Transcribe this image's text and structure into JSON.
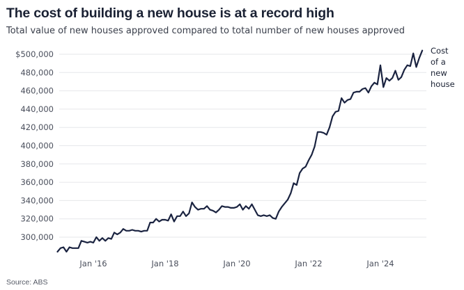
{
  "title": "The cost of building a new house is at a record high",
  "subtitle": "Total value of new houses approved compared to total number of new houses approved",
  "source": "Source: ABS",
  "colors": {
    "line": "#1a2340",
    "grid": "#e6e7ea",
    "text": "#4a4f5c"
  },
  "chart_data": {
    "type": "line",
    "title": "The cost of building a new house is at a record high",
    "subtitle": "Total value of new houses approved compared to total number of new houses approved",
    "xlabel": "",
    "ylabel": "",
    "ylim": [
      280000,
      510000
    ],
    "yticks": [
      300000,
      320000,
      340000,
      360000,
      380000,
      400000,
      420000,
      440000,
      460000,
      480000,
      500000
    ],
    "ytick_labels": [
      "300,000",
      "320,000",
      "340,000",
      "360,000",
      "380,000",
      "400,000",
      "420,000",
      "440,000",
      "460,000",
      "480,000",
      "$500,000"
    ],
    "xlim": [
      "2015-01",
      "2025-04"
    ],
    "xticks": [
      "2016-01",
      "2018-01",
      "2020-01",
      "2022-01",
      "2024-01"
    ],
    "xtick_labels": [
      "Jan '16",
      "Jan '18",
      "Jan '20",
      "Jan '22",
      "Jan '24"
    ],
    "grid": true,
    "annotation": [
      "Cost",
      "of a",
      "new",
      "house"
    ],
    "series": [
      {
        "name": "Cost of a new house",
        "x": [
          "2015-01",
          "2015-02",
          "2015-03",
          "2015-04",
          "2015-05",
          "2015-06",
          "2015-07",
          "2015-08",
          "2015-09",
          "2015-10",
          "2015-11",
          "2015-12",
          "2016-01",
          "2016-02",
          "2016-03",
          "2016-04",
          "2016-05",
          "2016-06",
          "2016-07",
          "2016-08",
          "2016-09",
          "2016-10",
          "2016-11",
          "2016-12",
          "2017-01",
          "2017-02",
          "2017-03",
          "2017-04",
          "2017-05",
          "2017-06",
          "2017-07",
          "2017-08",
          "2017-09",
          "2017-10",
          "2017-11",
          "2017-12",
          "2018-01",
          "2018-02",
          "2018-03",
          "2018-04",
          "2018-05",
          "2018-06",
          "2018-07",
          "2018-08",
          "2018-09",
          "2018-10",
          "2018-11",
          "2018-12",
          "2019-01",
          "2019-02",
          "2019-03",
          "2019-04",
          "2019-05",
          "2019-06",
          "2019-07",
          "2019-08",
          "2019-09",
          "2019-10",
          "2019-11",
          "2019-12",
          "2020-01",
          "2020-02",
          "2020-03",
          "2020-04",
          "2020-05",
          "2020-06",
          "2020-07",
          "2020-08",
          "2020-09",
          "2020-10",
          "2020-11",
          "2020-12",
          "2021-01",
          "2021-02",
          "2021-03",
          "2021-04",
          "2021-05",
          "2021-06",
          "2021-07",
          "2021-08",
          "2021-09",
          "2021-10",
          "2021-11",
          "2021-12",
          "2022-01",
          "2022-02",
          "2022-03",
          "2022-04",
          "2022-05",
          "2022-06",
          "2022-07",
          "2022-08",
          "2022-09",
          "2022-10",
          "2022-11",
          "2022-12",
          "2023-01",
          "2023-02",
          "2023-03",
          "2023-04",
          "2023-05",
          "2023-06",
          "2023-07",
          "2023-08",
          "2023-09",
          "2023-10",
          "2023-11",
          "2023-12",
          "2024-01",
          "2024-02",
          "2024-03",
          "2024-04",
          "2024-05",
          "2024-06",
          "2024-07",
          "2024-08",
          "2024-09",
          "2024-10",
          "2024-11",
          "2024-12",
          "2025-01",
          "2025-02",
          "2025-03"
        ],
        "values": [
          284000,
          288000,
          289000,
          284000,
          289000,
          288000,
          288000,
          288000,
          296000,
          295000,
          294000,
          295000,
          294000,
          300000,
          296000,
          299000,
          296000,
          299000,
          298000,
          305000,
          303000,
          305000,
          309000,
          307000,
          307000,
          308000,
          307000,
          307000,
          306000,
          307000,
          307000,
          316000,
          316000,
          320000,
          317000,
          319000,
          319000,
          318000,
          325000,
          317000,
          323000,
          323000,
          328000,
          323000,
          326000,
          338000,
          333000,
          330000,
          331000,
          331000,
          334000,
          330000,
          329000,
          327000,
          330000,
          334000,
          333000,
          333000,
          332000,
          332000,
          333000,
          336000,
          330000,
          334000,
          331000,
          336000,
          330000,
          324000,
          323000,
          324000,
          323000,
          324000,
          321000,
          320000,
          328000,
          333000,
          337000,
          341000,
          348000,
          359000,
          357000,
          370000,
          375000,
          377000,
          384000,
          390000,
          399000,
          415000,
          415000,
          414000,
          412000,
          420000,
          432000,
          437000,
          438000,
          452000,
          447000,
          450000,
          451000,
          458000,
          459000,
          459000,
          462000,
          463000,
          458000,
          465000,
          469000,
          467000,
          488000,
          464000,
          474000,
          471000,
          474000,
          482000,
          472000,
          475000,
          483000,
          488000,
          487000,
          501000,
          486000,
          496000,
          504000
        ]
      }
    ]
  }
}
